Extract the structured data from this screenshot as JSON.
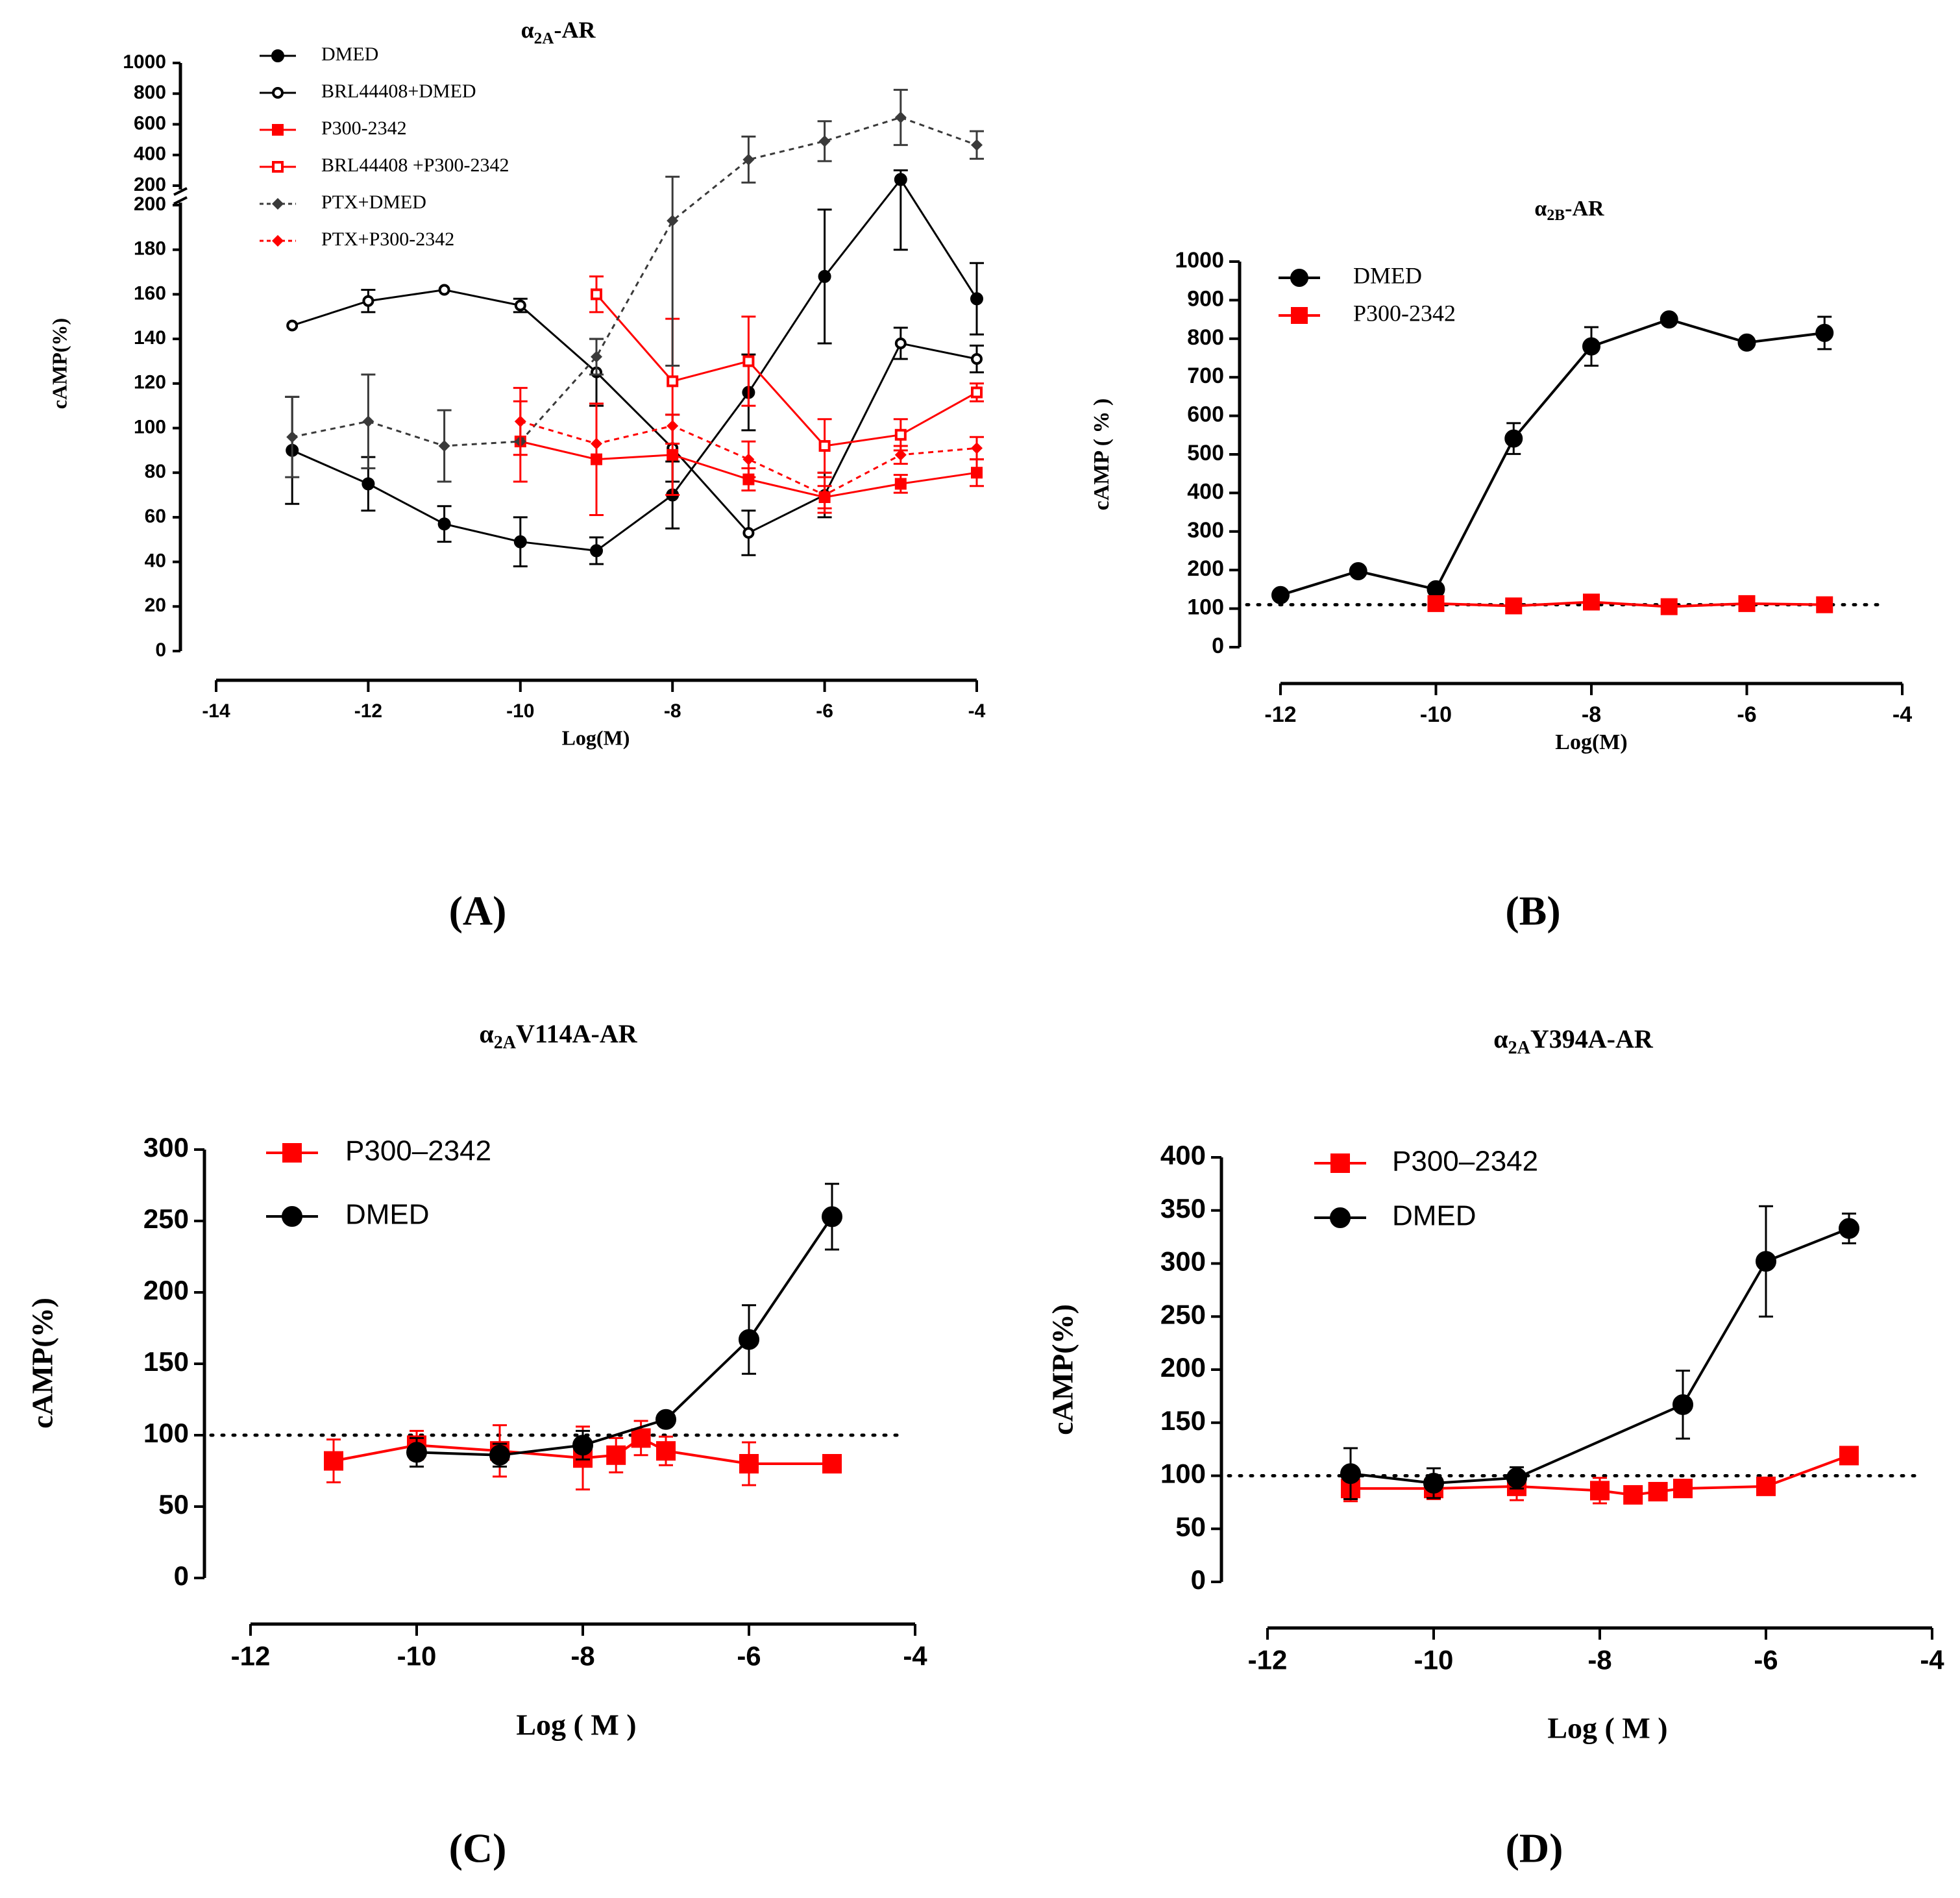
{
  "colors": {
    "black": "#000000",
    "red": "#ff0000",
    "gray": "#3a3a3a"
  },
  "chart_data": [
    {
      "id": "A",
      "type": "line",
      "panel_label": "(A)",
      "title": {
        "base": "α",
        "sub": "2A",
        "rest": "-AR"
      },
      "xlabel": "Log(M)",
      "ylabel": "cAMP(%)",
      "xlim": [
        -14,
        -4
      ],
      "xticks": [
        -14,
        -12,
        -10,
        -8,
        -6,
        -4
      ],
      "ylim_lower": [
        0,
        200
      ],
      "yticks_lower": [
        0,
        20,
        40,
        60,
        80,
        100,
        120,
        140,
        160,
        180,
        200
      ],
      "ylim_upper": [
        200,
        1000
      ],
      "yticks_upper": [
        200,
        400,
        600,
        800,
        1000
      ],
      "axis_break": true,
      "legend_position": "top-left",
      "series": [
        {
          "name": "DMED",
          "color": "#000000",
          "marker": "circle-filled",
          "dash": false,
          "legend": true,
          "x": [
            -13,
            -12,
            -11,
            -10,
            -9,
            -8,
            -7,
            -6,
            -5,
            -4
          ],
          "y": [
            90,
            75,
            57,
            49,
            45,
            70,
            116,
            168,
            240,
            158
          ],
          "err": [
            24,
            12,
            8,
            11,
            6,
            15,
            17,
            30,
            60,
            16
          ]
        },
        {
          "name": "BRL44408+DMED",
          "color": "#000000",
          "marker": "circle-open",
          "dash": false,
          "legend": true,
          "x": [
            -13,
            -12,
            -11,
            -10,
            -9,
            -8,
            -7,
            -6,
            -5,
            -4
          ],
          "y": [
            146,
            157,
            162,
            155,
            125,
            91,
            53,
            70,
            138,
            131
          ],
          "err": [
            0,
            5,
            0,
            3,
            15,
            15,
            10,
            10,
            7,
            6
          ]
        },
        {
          "name": "P300-2342",
          "color": "#ff0000",
          "marker": "square-filled",
          "dash": false,
          "legend": true,
          "x": [
            -10,
            -9,
            -8,
            -7,
            -6,
            -5,
            -4
          ],
          "y": [
            94,
            86,
            88,
            77,
            69,
            75,
            80
          ],
          "err": [
            18,
            25,
            18,
            5,
            5,
            4,
            6
          ]
        },
        {
          "name": "BRL44408 +P300-2342",
          "color": "#ff0000",
          "marker": "square-open",
          "dash": false,
          "legend": true,
          "x": [
            -9,
            -8,
            -7,
            -6,
            -5,
            -4
          ],
          "y": [
            160,
            121,
            130,
            92,
            97,
            116
          ],
          "err": [
            8,
            28,
            20,
            12,
            7,
            4
          ]
        },
        {
          "name": "PTX+DMED",
          "color": "#3a3a3a",
          "marker": "diamond-filled",
          "dash": true,
          "legend": true,
          "x": [
            -13,
            -12,
            -11,
            -10,
            -9,
            -8,
            -7,
            -6,
            -5,
            -4
          ],
          "y": [
            96,
            103,
            92,
            94,
            132,
            193,
            370,
            490,
            645,
            465
          ],
          "err": [
            18,
            21,
            16,
            0,
            8,
            65,
            150,
            130,
            180,
            90
          ]
        },
        {
          "name": "PTX+P300-2342",
          "color": "#ff0000",
          "marker": "diamond-filled",
          "dash": true,
          "legend": true,
          "x": [
            -10,
            -9,
            -8,
            -7,
            -6,
            -5,
            -4
          ],
          "y": [
            103,
            93,
            101,
            86,
            70,
            88,
            91
          ],
          "err": [
            15,
            0,
            0,
            8,
            8,
            4,
            5
          ]
        }
      ]
    },
    {
      "id": "B",
      "type": "line",
      "panel_label": "(B)",
      "title": {
        "base": "α",
        "sub": "2B",
        "rest": "-AR"
      },
      "xlabel": "Log(M)",
      "ylabel": "cAMP ( % )",
      "xlim": [
        -12,
        -4
      ],
      "xticks": [
        -12,
        -10,
        -8,
        -6,
        -4
      ],
      "ylim": [
        0,
        1000
      ],
      "yticks": [
        0,
        100,
        200,
        300,
        400,
        500,
        600,
        700,
        800,
        900,
        1000
      ],
      "reference_line": 110,
      "legend_position": "top-left",
      "series": [
        {
          "name": "DMED",
          "color": "#000000",
          "marker": "circle-filled",
          "dash": false,
          "legend": true,
          "x": [
            -12,
            -11,
            -10,
            -9,
            -8,
            -7,
            -6,
            -5
          ],
          "y": [
            135,
            197,
            150,
            541,
            780,
            850,
            790,
            815
          ],
          "err": [
            0,
            0,
            0,
            40,
            50,
            0,
            0,
            42
          ]
        },
        {
          "name": "P300-2342",
          "color": "#ff0000",
          "marker": "square-filled",
          "dash": false,
          "legend": true,
          "x": [
            -10,
            -9,
            -8,
            -7,
            -6,
            -5
          ],
          "y": [
            113,
            107,
            117,
            105,
            113,
            110
          ],
          "err": [
            0,
            0,
            0,
            0,
            0,
            0
          ]
        }
      ]
    },
    {
      "id": "C",
      "type": "line",
      "panel_label": "(C)",
      "title": {
        "base": "α",
        "sub": "2A",
        "rest": "V114A-AR"
      },
      "xlabel": "Log ( M )",
      "ylabel": "cAMP(%)",
      "xlim": [
        -12,
        -4
      ],
      "xticks": [
        -12,
        -10,
        -8,
        -6,
        -4
      ],
      "ylim": [
        0,
        300
      ],
      "yticks": [
        0,
        50,
        100,
        150,
        200,
        250,
        300
      ],
      "reference_line": 100,
      "legend_position": "top-left",
      "series": [
        {
          "name": "P300–2342",
          "color": "#ff0000",
          "marker": "square-filled",
          "dash": false,
          "legend": true,
          "x": [
            -11,
            -10,
            -9,
            -8,
            -7.6,
            -7.3,
            -7,
            -6,
            -5
          ],
          "y": [
            82,
            93,
            89,
            84,
            86,
            98,
            89,
            80,
            80
          ],
          "err": [
            15,
            10,
            18,
            22,
            12,
            12,
            10,
            15,
            0
          ]
        },
        {
          "name": "DMED",
          "color": "#000000",
          "marker": "circle-filled",
          "dash": false,
          "legend": true,
          "x": [
            -10,
            -9,
            -8,
            -7,
            -6,
            -5
          ],
          "y": [
            88,
            86,
            93,
            111,
            167,
            253
          ],
          "err": [
            10,
            8,
            10,
            0,
            24,
            23
          ]
        }
      ]
    },
    {
      "id": "D",
      "type": "line",
      "panel_label": "(D)",
      "title": {
        "base": "α",
        "sub": "2A",
        "rest": "Y394A-AR"
      },
      "xlabel": "Log ( M )",
      "ylabel": "cAMP(%)",
      "xlim": [
        -12,
        -4
      ],
      "xticks": [
        -12,
        -10,
        -8,
        -6,
        -4
      ],
      "ylim": [
        0,
        400
      ],
      "yticks": [
        0,
        50,
        100,
        150,
        200,
        250,
        300,
        350,
        400
      ],
      "reference_line": 100,
      "legend_position": "top-left",
      "series": [
        {
          "name": "P300–2342",
          "color": "#ff0000",
          "marker": "square-filled",
          "dash": false,
          "legend": true,
          "x": [
            -11,
            -10,
            -9,
            -8,
            -7.6,
            -7.3,
            -7,
            -6,
            -5
          ],
          "y": [
            88,
            88,
            90,
            86,
            82,
            85,
            88,
            90,
            119
          ],
          "err": [
            12,
            10,
            13,
            12,
            0,
            0,
            0,
            0,
            0
          ]
        },
        {
          "name": "DMED",
          "color": "#000000",
          "marker": "circle-filled",
          "dash": false,
          "legend": true,
          "x": [
            -11,
            -10,
            -9,
            -7,
            -6,
            -5
          ],
          "y": [
            102,
            93,
            98,
            167,
            302,
            333
          ],
          "err": [
            24,
            14,
            10,
            32,
            52,
            14
          ]
        }
      ]
    }
  ]
}
